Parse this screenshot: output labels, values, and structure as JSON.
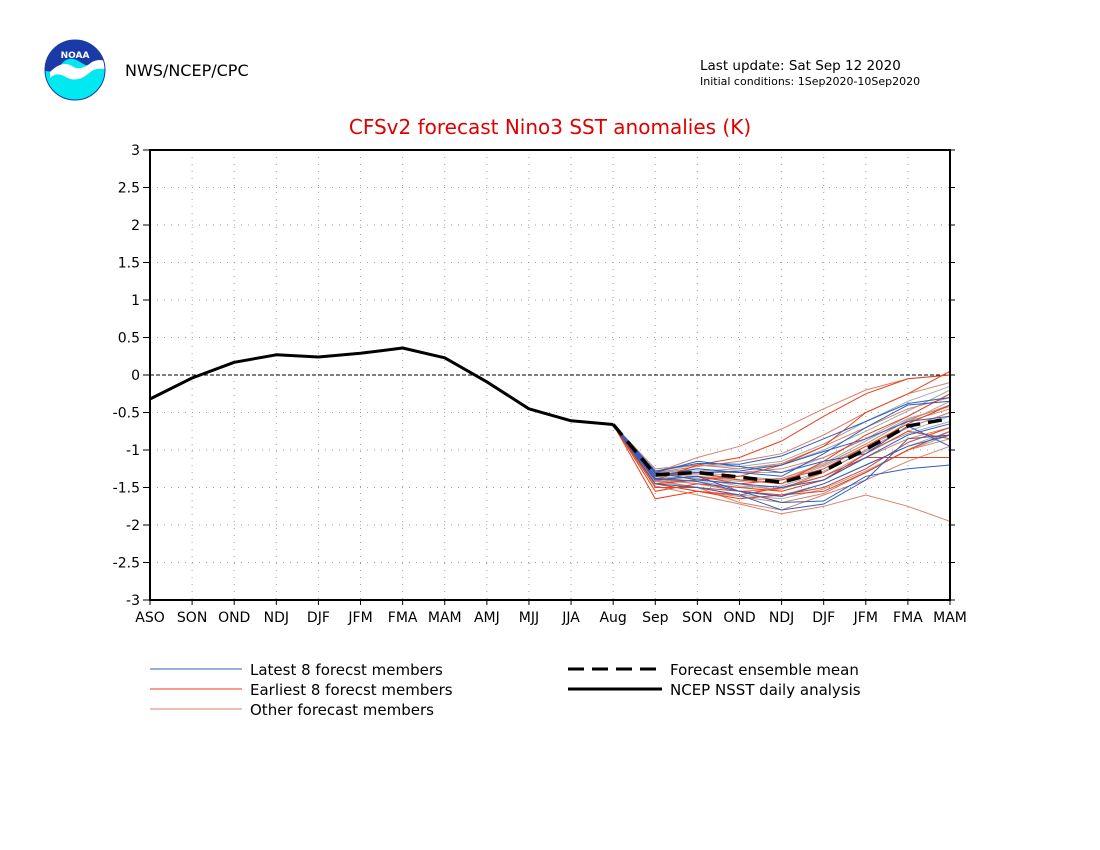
{
  "header": {
    "org": "NWS/NCEP/CPC",
    "logo_text": "NOAA",
    "last_update": "Last update: Sat Sep 12 2020",
    "initial_conditions": "Initial conditions:  1Sep2020-10Sep2020"
  },
  "colors": {
    "title": "#e00000",
    "latest": "#2a5fc4",
    "earliest": "#e8401a",
    "other": "#d8826a",
    "grey": "#a8a8a8",
    "analysis": "#000000",
    "logo_top": "#1a3aa8",
    "logo_bottom": "#00e8f0"
  },
  "chart_data": {
    "type": "line",
    "title": "CFSv2 forecast Nino3 SST anomalies (K)",
    "categories": [
      "ASO",
      "SON",
      "OND",
      "NDJ",
      "DJF",
      "JFM",
      "FMA",
      "MAM",
      "AMJ",
      "MJJ",
      "JJA",
      "Aug",
      "Sep",
      "SON",
      "OND",
      "NDJ",
      "DJF",
      "JFM",
      "FMA",
      "MAM"
    ],
    "ylim": [
      -3,
      3
    ],
    "yticks": [
      "3",
      "2.5",
      "2",
      "1.5",
      "1",
      "0.5",
      "0",
      "-0.5",
      "-1",
      "-1.5",
      "-2",
      "-2.5",
      "-3"
    ],
    "grid": true,
    "legend_placement": "bottom",
    "analysis": {
      "name": "NCEP NSST daily analysis",
      "values": [
        -0.32,
        -0.04,
        0.17,
        0.27,
        0.24,
        0.29,
        0.36,
        0.23,
        -0.09,
        -0.45,
        -0.61,
        -0.66
      ]
    },
    "ensemble_mean": {
      "name": "Forecast ensemble mean",
      "values": [
        -0.66,
        -1.33,
        -1.3,
        -1.36,
        -1.43,
        -1.28,
        -0.99,
        -0.68,
        -0.58
      ]
    },
    "latest_members": {
      "name": "Latest 8 forecst members",
      "values": [
        [
          -0.66,
          -1.28,
          -1.18,
          -1.19,
          -1.08,
          -0.85,
          -0.62,
          -0.38,
          -0.3
        ],
        [
          -0.66,
          -1.4,
          -1.35,
          -1.55,
          -1.7,
          -1.68,
          -1.35,
          -1.25,
          -1.2
        ],
        [
          -0.66,
          -1.3,
          -1.4,
          -1.45,
          -1.5,
          -1.4,
          -1.1,
          -0.8,
          -0.65
        ],
        [
          -0.66,
          -1.35,
          -1.25,
          -1.3,
          -1.35,
          -1.05,
          -0.7,
          -0.4,
          -0.35
        ],
        [
          -0.66,
          -1.45,
          -1.5,
          -1.6,
          -1.8,
          -1.72,
          -1.4,
          -0.85,
          -0.8
        ],
        [
          -0.66,
          -1.32,
          -1.3,
          -1.28,
          -1.2,
          -1.02,
          -0.85,
          -0.62,
          -0.55
        ],
        [
          -0.66,
          -1.38,
          -1.42,
          -1.55,
          -1.62,
          -1.45,
          -1.2,
          -0.95,
          -0.8
        ],
        [
          -0.66,
          -1.3,
          -1.15,
          -1.22,
          -1.3,
          -1.15,
          -1.05,
          -0.68,
          -0.95
        ]
      ]
    },
    "earliest_members": {
      "name": "Earliest 8 forecst members",
      "values": [
        [
          -0.66,
          -1.45,
          -1.4,
          -1.35,
          -1.2,
          -0.95,
          -0.5,
          -0.25,
          0.05
        ],
        [
          -0.66,
          -1.65,
          -1.55,
          -1.6,
          -1.5,
          -1.35,
          -1.1,
          -1.1,
          -1.1
        ],
        [
          -0.66,
          -1.4,
          -1.2,
          -1.1,
          -0.88,
          -0.55,
          -0.25,
          -0.05,
          0.0
        ],
        [
          -0.66,
          -1.5,
          -1.5,
          -1.55,
          -1.6,
          -1.55,
          -1.3,
          -1.0,
          -0.75
        ],
        [
          -0.66,
          -1.4,
          -1.35,
          -1.45,
          -1.4,
          -1.25,
          -0.95,
          -0.65,
          -0.4
        ],
        [
          -0.66,
          -1.55,
          -1.45,
          -1.5,
          -1.55,
          -1.4,
          -1.05,
          -0.75,
          -0.85
        ],
        [
          -0.66,
          -1.35,
          -1.3,
          -1.4,
          -1.45,
          -1.15,
          -0.8,
          -0.55,
          -0.25
        ],
        [
          -0.66,
          -1.45,
          -1.55,
          -1.65,
          -1.6,
          -1.5,
          -1.25,
          -0.9,
          -0.7
        ]
      ]
    },
    "other_members": {
      "name": "Other forecast members",
      "values": [
        [
          -0.66,
          -1.3,
          -1.1,
          -0.95,
          -0.72,
          -0.45,
          -0.2,
          -0.05,
          0.0
        ],
        [
          -0.66,
          -1.4,
          -1.5,
          -1.7,
          -1.8,
          -1.6,
          -1.4,
          -1.15,
          -0.95
        ],
        [
          -0.66,
          -1.25,
          -1.2,
          -1.25,
          -1.18,
          -0.95,
          -0.7,
          -0.45,
          -0.3
        ],
        [
          -0.66,
          -1.48,
          -1.6,
          -1.72,
          -1.85,
          -1.75,
          -1.6,
          -1.75,
          -1.95
        ],
        [
          -0.66,
          -1.35,
          -1.3,
          -1.3,
          -1.25,
          -1.1,
          -0.85,
          -0.62,
          -0.45
        ],
        [
          -0.66,
          -1.38,
          -1.45,
          -1.55,
          -1.52,
          -1.3,
          -1.0,
          -0.7,
          -0.5
        ],
        [
          -0.66,
          -1.3,
          -1.22,
          -1.15,
          -1.05,
          -0.8,
          -0.5,
          -0.25,
          -0.1
        ],
        [
          -0.66,
          -1.42,
          -1.4,
          -1.45,
          -1.55,
          -1.4,
          -1.1,
          -0.85,
          -0.7
        ],
        [
          -0.66,
          -1.33,
          -1.35,
          -1.4,
          -1.38,
          -1.2,
          -0.92,
          -0.6,
          -0.4
        ],
        [
          -0.66,
          -1.45,
          -1.55,
          -1.62,
          -1.7,
          -1.58,
          -1.3,
          -1.0,
          -0.85
        ]
      ]
    },
    "grey_members": {
      "values": [
        [
          -0.66,
          -1.3,
          -1.25,
          -1.3,
          -1.3,
          -1.1,
          -0.85,
          -0.55,
          -0.25
        ],
        [
          -0.66,
          -1.35,
          -1.38,
          -1.48,
          -1.52,
          -1.35,
          -1.05,
          -0.75,
          -0.55
        ],
        [
          -0.66,
          -1.28,
          -1.2,
          -1.22,
          -1.15,
          -0.92,
          -0.62,
          -0.35,
          -0.15
        ],
        [
          -0.66,
          -1.4,
          -1.45,
          -1.55,
          -1.6,
          -1.45,
          -1.2,
          -0.95,
          -0.75
        ],
        [
          -0.66,
          -1.32,
          -1.3,
          -1.35,
          -1.4,
          -1.22,
          -0.95,
          -0.7,
          -0.5
        ],
        [
          -0.66,
          -1.36,
          -1.42,
          -1.5,
          -1.48,
          -1.3,
          -1.0,
          -0.62,
          -0.35
        ],
        [
          -0.66,
          -1.3,
          -1.28,
          -1.25,
          -1.2,
          -1.0,
          -0.75,
          -0.48,
          -0.2
        ],
        [
          -0.66,
          -1.42,
          -1.5,
          -1.6,
          -1.65,
          -1.52,
          -1.28,
          -1.0,
          -0.8
        ],
        [
          -0.66,
          -1.34,
          -1.32,
          -1.4,
          -1.45,
          -1.28,
          -1.02,
          -0.78,
          -0.62
        ],
        [
          -0.66,
          -1.38,
          -1.36,
          -1.42,
          -1.38,
          -1.18,
          -0.88,
          -0.58,
          -0.42
        ]
      ]
    }
  }
}
